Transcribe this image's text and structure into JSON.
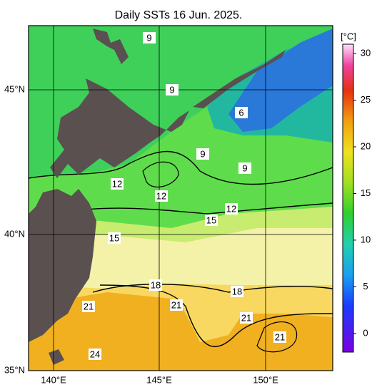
{
  "title": "Daily SSTs 16 Jun. 2025.",
  "colorbar": {
    "unit": "[°C]",
    "range": [
      -2,
      31
    ],
    "ticks": [
      0,
      5,
      10,
      15,
      20,
      25,
      30
    ]
  },
  "lat_labels": [
    "45°N",
    "40°N",
    "35°N"
  ],
  "lon_labels": [
    "140°E",
    "145°E",
    "150°E"
  ],
  "contour_labels": [
    9,
    9,
    6,
    9,
    9,
    12,
    12,
    12,
    15,
    15,
    18,
    18,
    21,
    21,
    21,
    21,
    24
  ]
}
